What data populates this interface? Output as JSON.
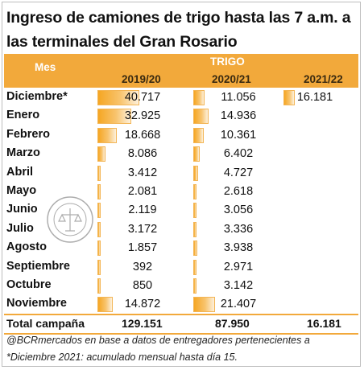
{
  "title": "Ingreso de camiones de trigo hasta las 7 a.m. a las terminales del Gran Rosario",
  "header": {
    "month_col": "Mes",
    "group": "TRIGO",
    "years": [
      "2019/20",
      "2020/21",
      "2021/22"
    ]
  },
  "max_value": 87950,
  "rows": [
    {
      "month": "Diciembre*",
      "v1": "40.717",
      "v2": "11.056",
      "v3": "16.181",
      "n1": 40717,
      "n2": 11056,
      "n3": 16181
    },
    {
      "month": "Enero",
      "v1": "32.925",
      "v2": "14.936",
      "v3": "",
      "n1": 32925,
      "n2": 14936,
      "n3": 0
    },
    {
      "month": "Febrero",
      "v1": "18.668",
      "v2": "10.361",
      "v3": "",
      "n1": 18668,
      "n2": 10361,
      "n3": 0
    },
    {
      "month": "Marzo",
      "v1": "8.086",
      "v2": "6.402",
      "v3": "",
      "n1": 8086,
      "n2": 6402,
      "n3": 0
    },
    {
      "month": "Abril",
      "v1": "3.412",
      "v2": "4.727",
      "v3": "",
      "n1": 3412,
      "n2": 4727,
      "n3": 0
    },
    {
      "month": "Mayo",
      "v1": "2.081",
      "v2": "2.618",
      "v3": "",
      "n1": 2081,
      "n2": 2618,
      "n3": 0
    },
    {
      "month": "Junio",
      "v1": "2.119",
      "v2": "3.056",
      "v3": "",
      "n1": 2119,
      "n2": 3056,
      "n3": 0
    },
    {
      "month": "Julio",
      "v1": "3.172",
      "v2": "3.336",
      "v3": "",
      "n1": 3172,
      "n2": 3336,
      "n3": 0
    },
    {
      "month": "Agosto",
      "v1": "1.857",
      "v2": "3.938",
      "v3": "",
      "n1": 1857,
      "n2": 3938,
      "n3": 0
    },
    {
      "month": "Septiembre",
      "v1": "392",
      "v2": "2.971",
      "v3": "",
      "n1": 392,
      "n2": 2971,
      "n3": 0
    },
    {
      "month": "Octubre",
      "v1": "850",
      "v2": "3.142",
      "v3": "",
      "n1": 850,
      "n2": 3142,
      "n3": 0
    },
    {
      "month": "Noviembre",
      "v1": "14.872",
      "v2": "21.407",
      "v3": "",
      "n1": 14872,
      "n2": 21407,
      "n3": 0
    }
  ],
  "total": {
    "label": "Total campaña",
    "values": [
      "129.151",
      "87.950",
      "16.181"
    ]
  },
  "notes": [
    "@BCRmercados en base a datos de entregadores pertenecientes a",
    "*Diciembre 2021: acumulado mensual hasta día 15."
  ],
  "colors": {
    "accent": "#f2a93b",
    "bar": "#f5a623"
  }
}
